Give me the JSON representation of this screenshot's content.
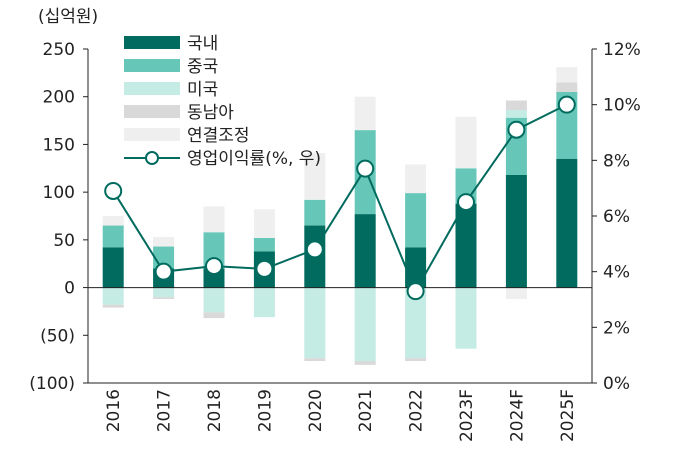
{
  "chart_data": {
    "type": "bar",
    "title": "",
    "unit_left": "(십억원)",
    "categories": [
      "2016",
      "2017",
      "2018",
      "2019",
      "2020",
      "2021",
      "2022",
      "2023F",
      "2024F",
      "2025F"
    ],
    "series": [
      {
        "name": "국내",
        "kind": "bar",
        "color": "#006b5e",
        "values": [
          42,
          20,
          20,
          38,
          65,
          77,
          42,
          88,
          118,
          135
        ]
      },
      {
        "name": "중국",
        "kind": "bar",
        "color": "#66c7b8",
        "values": [
          23,
          23,
          38,
          14,
          27,
          88,
          57,
          37,
          60,
          70
        ]
      },
      {
        "name": "미국",
        "kind": "bar",
        "color": "#c4ebe4",
        "values": [
          -18,
          -10,
          -26,
          -31,
          -74,
          -77,
          -74,
          -64,
          8,
          0
        ]
      },
      {
        "name": "동남아",
        "kind": "bar",
        "color": "#d9d9d9",
        "values": [
          -3,
          -2,
          -6,
          0,
          -3,
          -4,
          -3,
          0,
          10,
          10
        ]
      },
      {
        "name": "연결조정",
        "kind": "bar",
        "color": "#efefef",
        "values": [
          10,
          10,
          27,
          30,
          49,
          35,
          30,
          54,
          -12,
          16
        ]
      },
      {
        "name": "영업이익률(%, 우)",
        "kind": "line",
        "color": "#006b5e",
        "values": [
          6.9,
          4.0,
          4.2,
          4.1,
          4.8,
          7.7,
          3.3,
          6.5,
          9.1,
          10.0
        ]
      }
    ],
    "y_left": {
      "min": -100,
      "max": 250,
      "step": 50,
      "tick_labels": [
        "(100)",
        "(50)",
        "0",
        "50",
        "100",
        "150",
        "200",
        "250"
      ]
    },
    "y_right": {
      "min": 0,
      "max": 12,
      "step": 2,
      "tick_labels": [
        "0%",
        "2%",
        "4%",
        "6%",
        "8%",
        "10%",
        "12%"
      ]
    },
    "grid": false,
    "legend_position": "top-left"
  }
}
